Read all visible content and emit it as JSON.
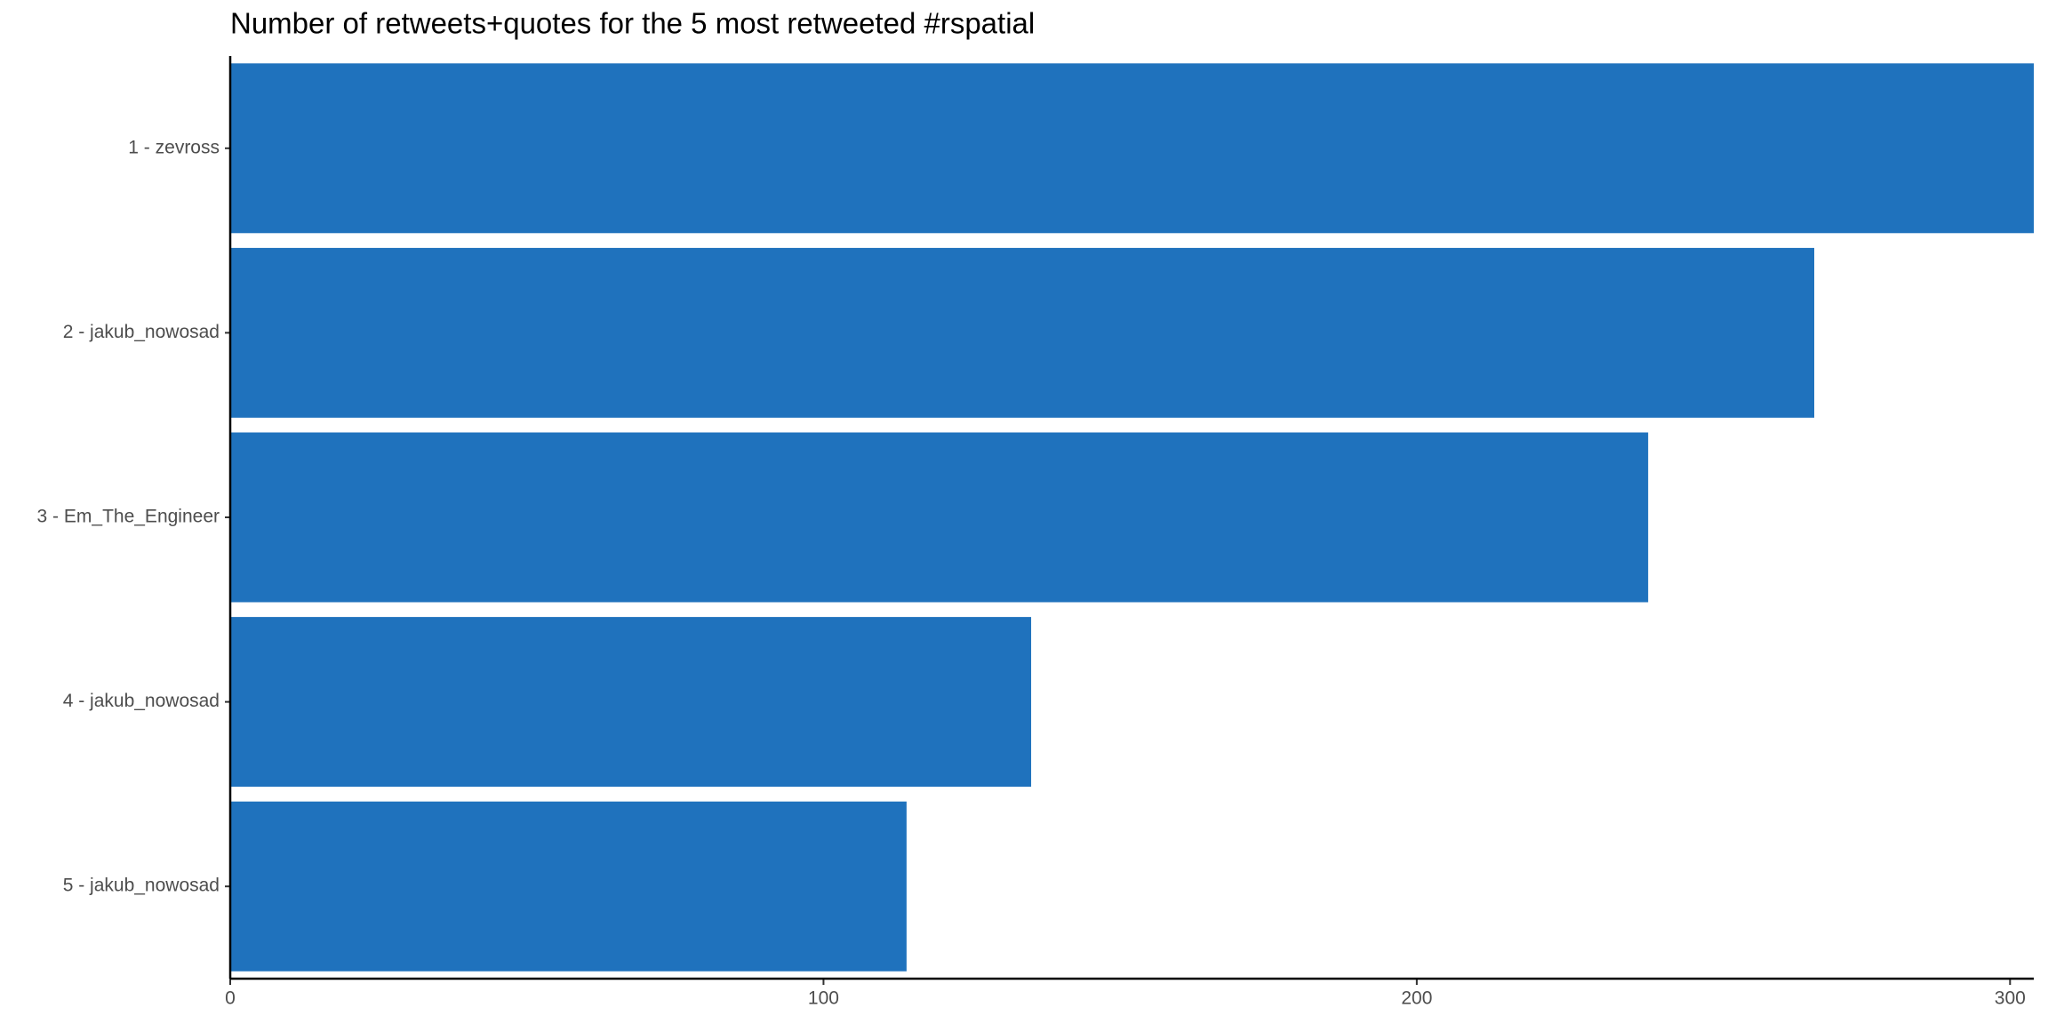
{
  "chart_data": {
    "type": "bar",
    "orientation": "horizontal",
    "title": "Number of retweets+quotes for the 5 most retweeted #rspatial",
    "categories": [
      "1 - zevross",
      "2 - jakub_nowosad",
      "3 - Em_The_Engineer",
      "4 - jakub_nowosad",
      "5 - jakub_nowosad"
    ],
    "values": [
      304,
      267,
      239,
      135,
      114
    ],
    "color": "#1f72bd",
    "xlim": [
      0,
      304
    ],
    "xticks": [
      0,
      100,
      200,
      300
    ],
    "grid": false
  }
}
